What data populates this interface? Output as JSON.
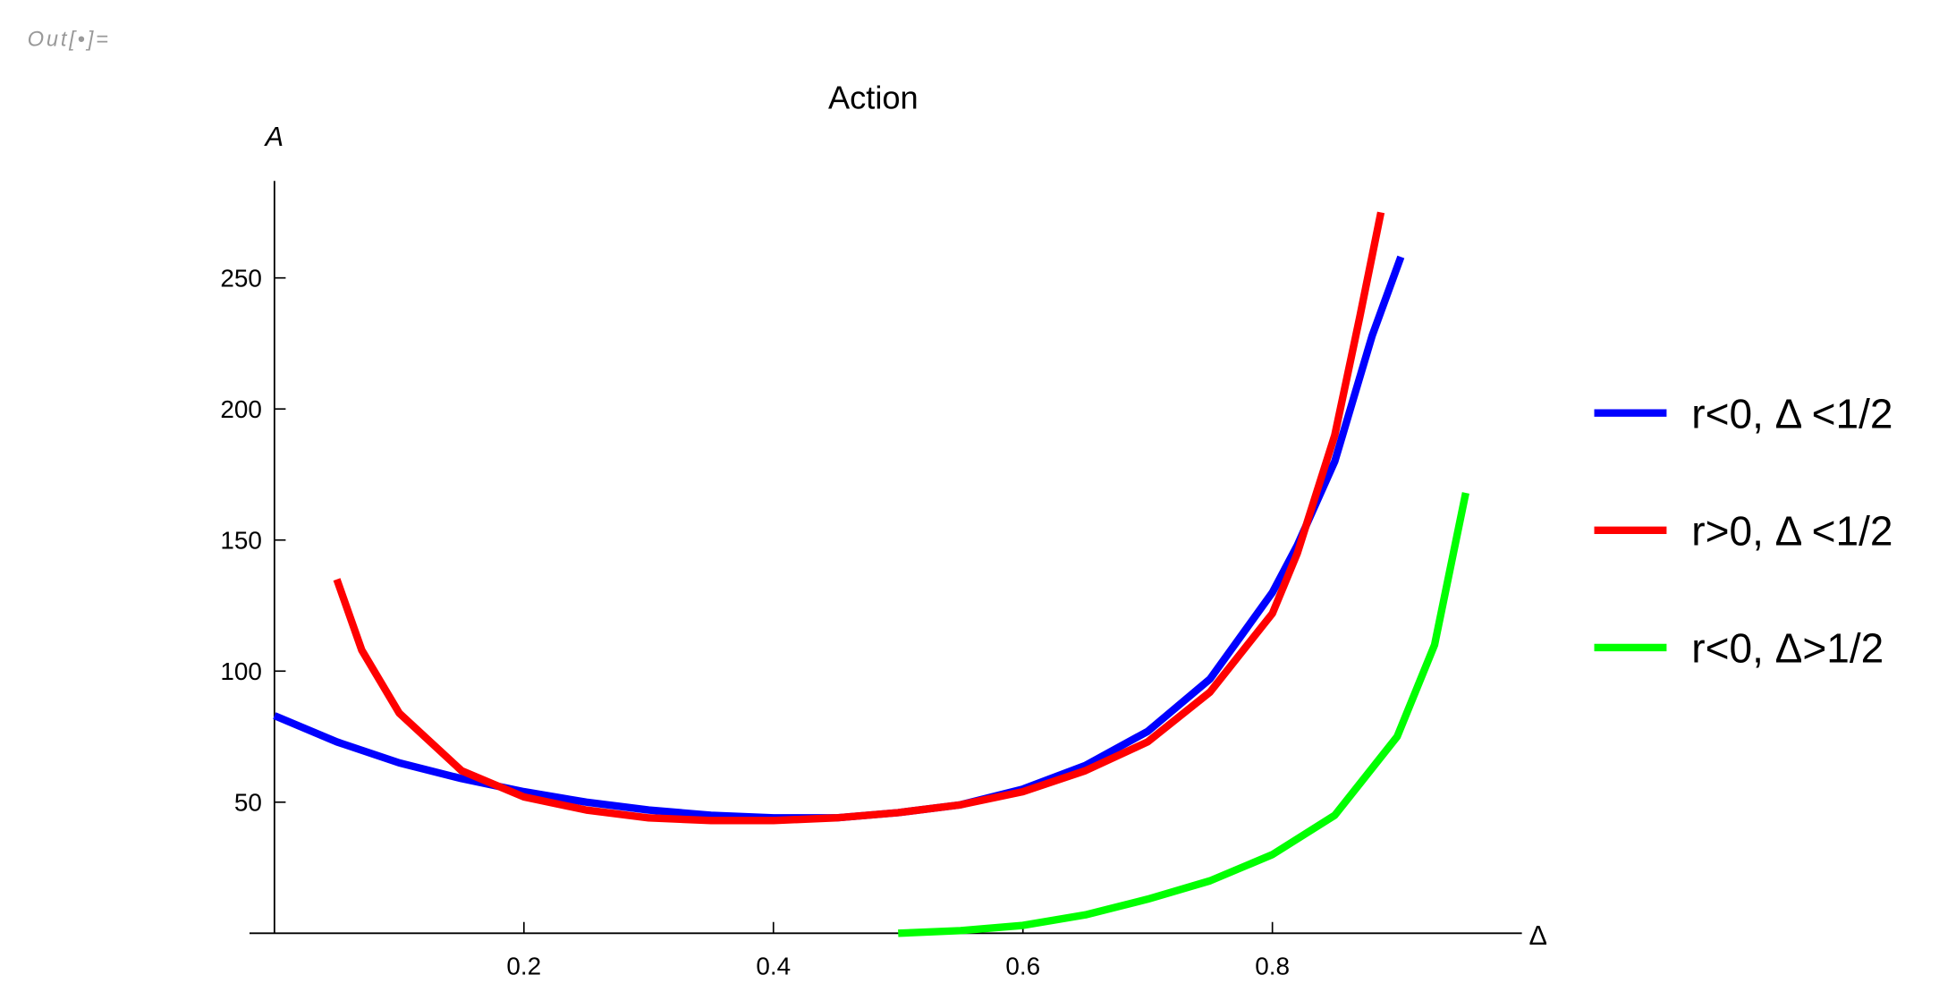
{
  "prompt": "Out[•]=",
  "chart_data": {
    "type": "line",
    "title": "Action",
    "x_label": "Δ",
    "y_label": "A",
    "xlim": [
      -0.02,
      1.0
    ],
    "ylim": [
      0,
      287
    ],
    "xticks": [
      0.2,
      0.4,
      0.6,
      0.8
    ],
    "yticks": [
      50,
      100,
      150,
      200,
      250
    ],
    "legend": "right",
    "series": [
      {
        "name": "r<0, Δ <1/2",
        "color": "#0000ff",
        "x": [
          0,
          0.05,
          0.1,
          0.15,
          0.2,
          0.25,
          0.3,
          0.35,
          0.4,
          0.45,
          0.5,
          0.55,
          0.6,
          0.65,
          0.7,
          0.75,
          0.8,
          0.82,
          0.85,
          0.88,
          0.903
        ],
        "values": [
          83,
          73,
          65,
          59,
          54,
          50,
          47,
          45,
          44,
          44,
          46,
          49,
          55,
          64,
          77,
          97,
          130,
          148,
          180,
          228,
          258
        ]
      },
      {
        "name": "r>0, Δ <1/2",
        "color": "#ff0000",
        "x": [
          0.05,
          0.07,
          0.1,
          0.15,
          0.2,
          0.25,
          0.3,
          0.35,
          0.4,
          0.45,
          0.5,
          0.55,
          0.6,
          0.65,
          0.7,
          0.75,
          0.8,
          0.82,
          0.85,
          0.87,
          0.887
        ],
        "values": [
          135,
          108,
          84,
          62,
          52,
          47,
          44,
          43,
          43,
          44,
          46,
          49,
          54,
          62,
          73,
          92,
          122,
          145,
          190,
          235,
          275
        ]
      },
      {
        "name": "r<0, Δ>1/2",
        "color": "#00ff00",
        "x": [
          0.5,
          0.55,
          0.6,
          0.65,
          0.7,
          0.75,
          0.8,
          0.85,
          0.9,
          0.93,
          0.955
        ],
        "values": [
          0,
          1,
          3,
          7,
          13,
          20,
          30,
          45,
          75,
          110,
          168
        ]
      }
    ]
  }
}
